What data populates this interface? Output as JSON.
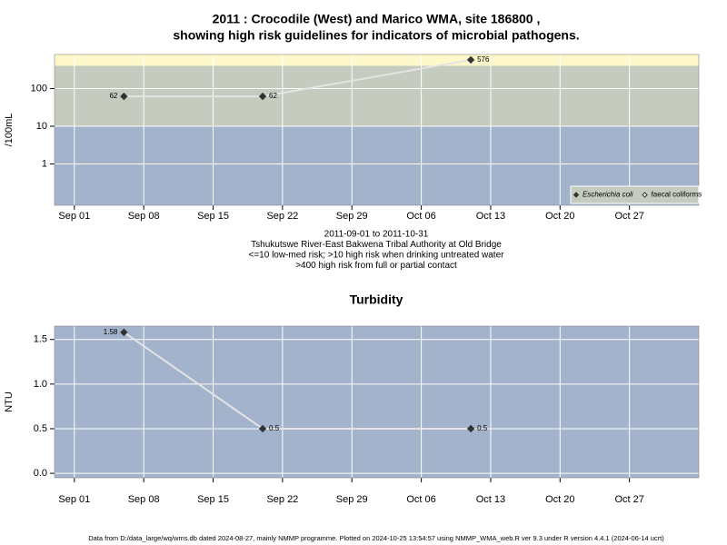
{
  "chart_data": [
    {
      "type": "line",
      "title": [
        "2011 : Crocodile (West) and Marico WMA, site 186800 ,",
        "showing high risk guidelines for indicators of microbial pathogens."
      ],
      "y_label": "/100mL",
      "notes": [
        "2011-09-01 to 2011-10-31",
        "Tshukutswe River-East Bakwena Tribal Authority at Old Bridge",
        "<=10 low-med risk; >10 high risk when drinking untreated water",
        ">400 high risk from full or partial contact"
      ],
      "x": [
        "Sep 06",
        "Sep 20",
        "Oct 11"
      ],
      "xlim": [
        "Aug 30",
        "Nov 03"
      ],
      "xticks": [
        "Sep 01",
        "Sep 08",
        "Sep 15",
        "Sep 22",
        "Sep 29",
        "Oct 06",
        "Oct 13",
        "Oct 20",
        "Oct 27"
      ],
      "log_y": true,
      "ylim": [
        0.08,
        800
      ],
      "yticks": [
        1,
        10,
        100
      ],
      "thresholds": [
        10,
        400
      ],
      "band_colors": [
        "#a3b3cc",
        "#c6cbbf",
        "#fdf7c9"
      ],
      "grid": true,
      "legend": "bottom right",
      "series": [
        {
          "name": "Escherichia coli",
          "italic": true,
          "filled": true,
          "color": "#333333",
          "line_color": "#e4e4e4",
          "values": [
            62,
            62,
            576
          ]
        },
        {
          "name": "faecal coliforms",
          "italic": false,
          "filled": false,
          "color": "#333333",
          "line_color": "#e4e4e4",
          "values": [
            null,
            null,
            null
          ]
        }
      ]
    },
    {
      "type": "line",
      "title": [
        "Turbidity"
      ],
      "y_label": "NTU",
      "x": [
        "Sep 06",
        "Sep 20",
        "Oct 11"
      ],
      "xlim": [
        "Aug 30",
        "Nov 03"
      ],
      "xticks": [
        "Sep 01",
        "Sep 08",
        "Sep 15",
        "Sep 22",
        "Sep 29",
        "Oct 06",
        "Oct 13",
        "Oct 20",
        "Oct 27"
      ],
      "log_y": false,
      "ylim": [
        -0.05,
        1.65
      ],
      "yticks": [
        {
          "value": 0,
          "label": "0.0"
        },
        0.5,
        {
          "value": 1,
          "label": "1.0"
        },
        1.5
      ],
      "background": "#a3b3cc",
      "grid": true,
      "series": [
        {
          "name": "Turbidity",
          "filled": true,
          "color": "#333333",
          "line_color": "#e4e4e4",
          "values": [
            1.58,
            0.5,
            0.5
          ]
        }
      ]
    }
  ],
  "footer": "Data from D:/data_large/wq/wms.db dated 2024-08-27, mainly NMMP programme. Plotted on 2024-10-25 13:54:57 using NMMP_WMA_web.R ver 9.3 under R version 4.4.1 (2024-06-14 ucrt)"
}
